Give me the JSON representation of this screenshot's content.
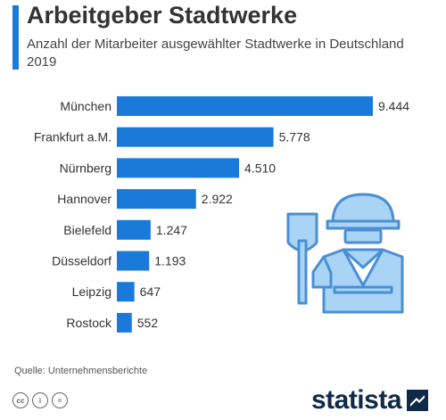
{
  "header": {
    "title": "Arbeitgeber Stadtwerke",
    "subtitle": "Anzahl der Mitarbeiter ausgewählter Stadtwerke in Deutschland 2019"
  },
  "chart_data": {
    "type": "bar",
    "orientation": "horizontal",
    "categories": [
      "München",
      "Frankfurt a.M.",
      "Nürnberg",
      "Hannover",
      "Bielefeld",
      "Düsseldorf",
      "Leipzig",
      "Rostock"
    ],
    "values": [
      9444,
      5778,
      4510,
      2922,
      1247,
      1193,
      647,
      552
    ],
    "value_labels": [
      "9.444",
      "5.778",
      "4.510",
      "2.922",
      "1.247",
      "1.193",
      "647",
      "552"
    ],
    "xlim": [
      0,
      9444
    ],
    "grid": false,
    "bar_color": "#1a7ad9"
  },
  "footer": {
    "source": "Quelle: Unternehmensberichte",
    "logo_text": "statista",
    "cc_icons": [
      "cc-icon",
      "by-icon",
      "nd-icon"
    ],
    "cc_labels": [
      "cc",
      "i",
      "="
    ]
  },
  "colors": {
    "accent": "#1a7ad9",
    "illustration": "#a9d4f5",
    "illustration_stroke": "#4a8fd4",
    "logo": "#0e2a47"
  }
}
